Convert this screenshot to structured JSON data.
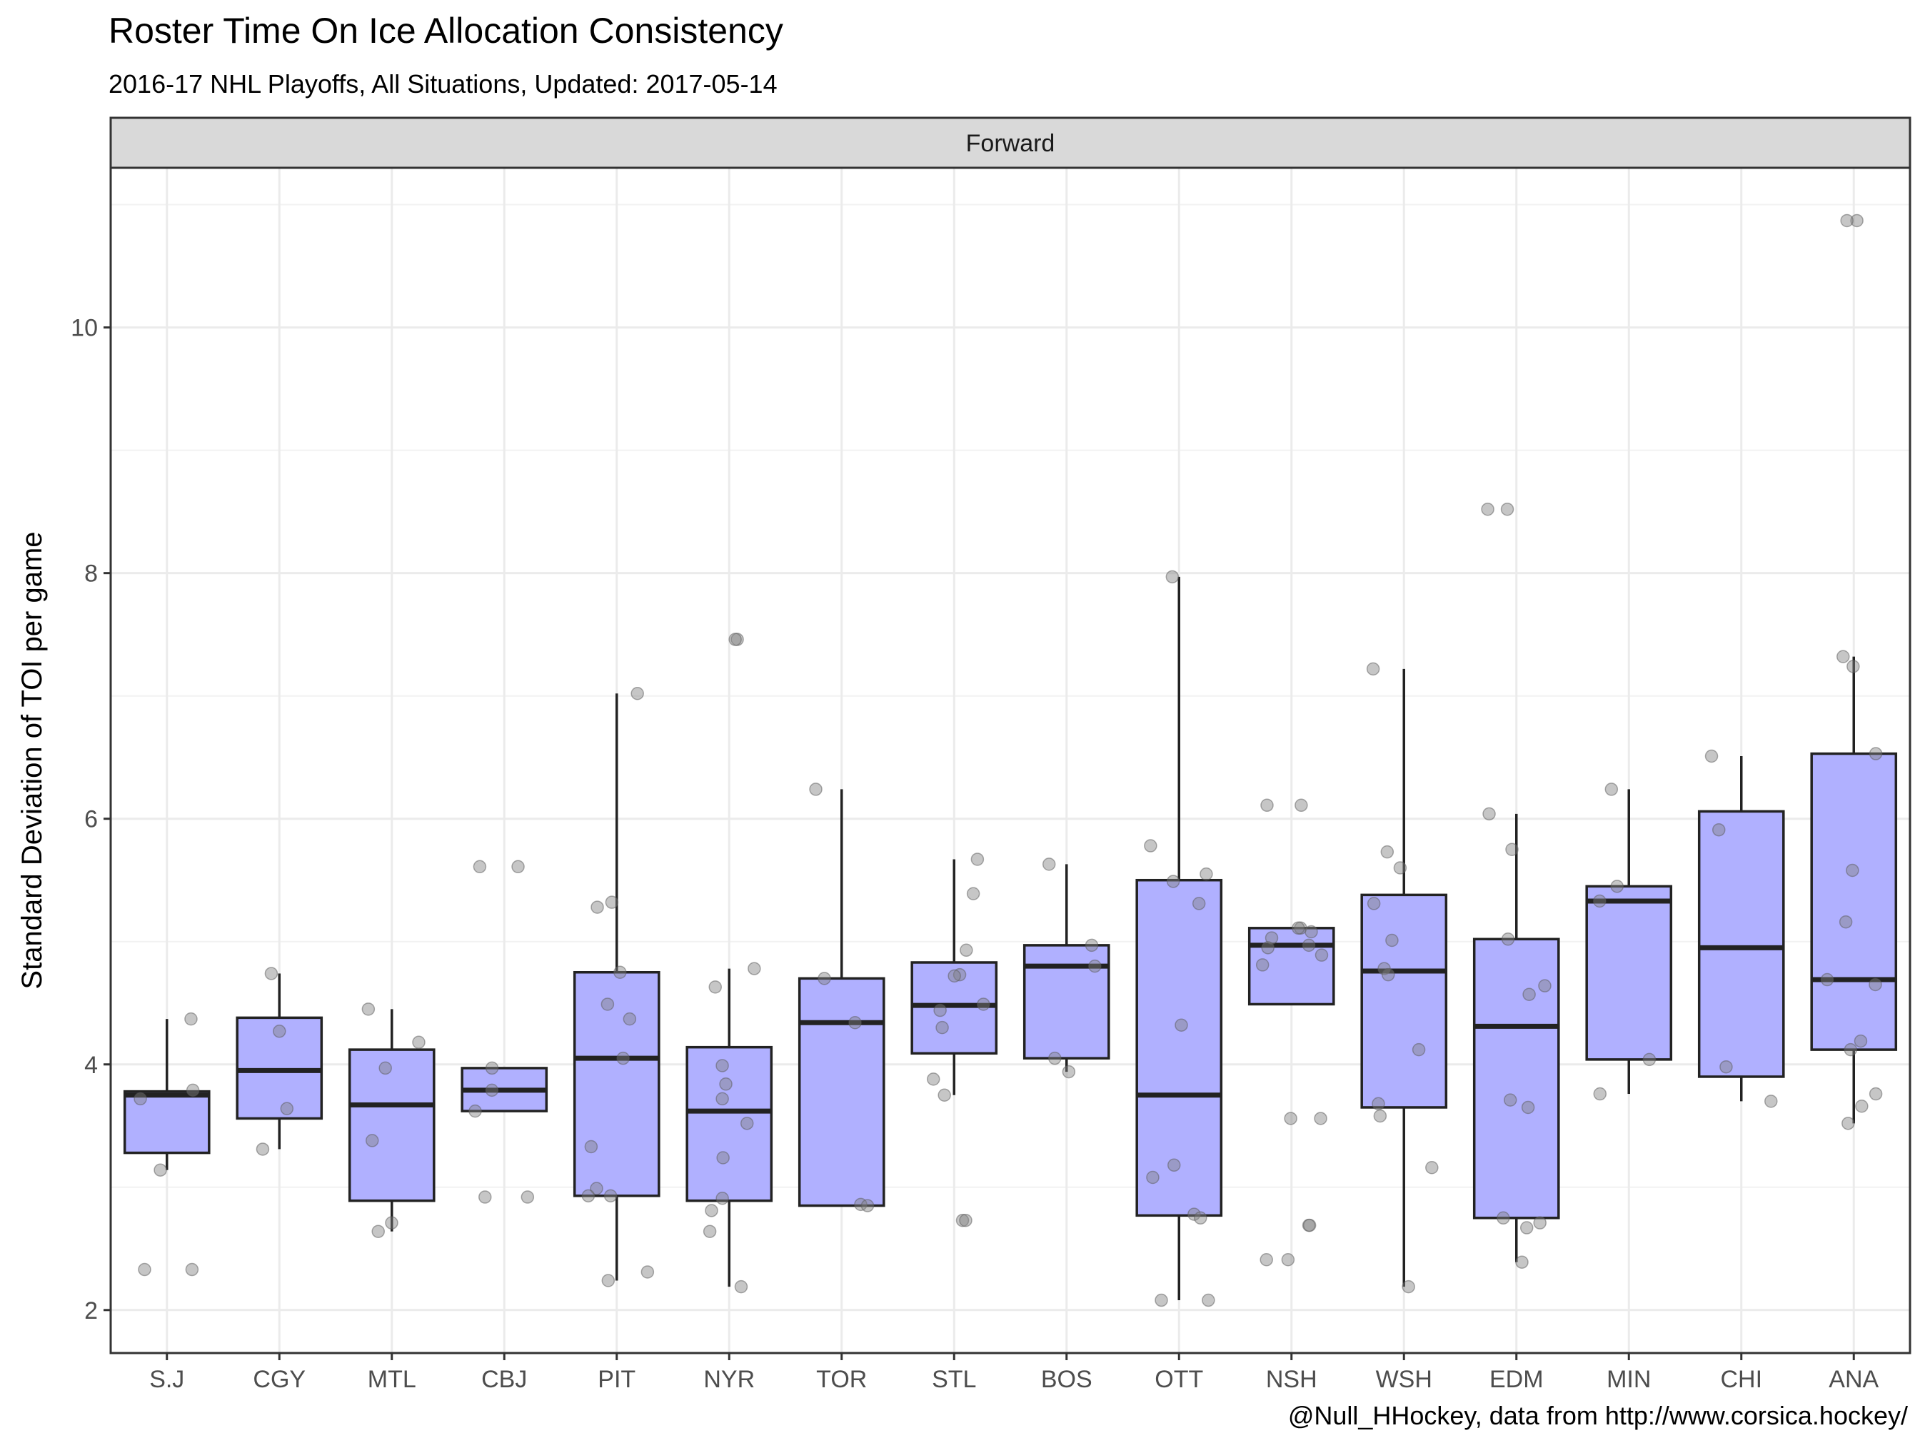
{
  "chart_data": {
    "type": "box",
    "title": "Roster Time On Ice Allocation Consistency",
    "subtitle": "2016-17 NHL Playoffs, All Situations, Updated: 2017-05-14",
    "caption": "@Null_HHockey, data from http://www.corsica.hockey/",
    "facet": "Forward",
    "xlabel": "",
    "ylabel": "Standard Deviation of TOI per game",
    "ylim": [
      1.65,
      11.3
    ],
    "yticks": [
      2,
      4,
      6,
      8,
      10
    ],
    "grid": true,
    "colors": {
      "box_fill": "#b0b0ff",
      "box_line": "#222222",
      "point": "#808080",
      "strip": "#d9d9d9"
    },
    "categories": [
      "S.J",
      "CGY",
      "MTL",
      "CBJ",
      "PIT",
      "NYR",
      "TOR",
      "STL",
      "BOS",
      "OTT",
      "NSH",
      "WSH",
      "EDM",
      "MIN",
      "CHI",
      "ANA"
    ],
    "boxes": [
      {
        "team": "S.J",
        "whisker_low": 3.14,
        "q1": 3.28,
        "median": 3.75,
        "q3": 3.78,
        "whisker_high": 4.37
      },
      {
        "team": "CGY",
        "whisker_low": 3.31,
        "q1": 3.56,
        "median": 3.95,
        "q3": 4.38,
        "whisker_high": 4.74
      },
      {
        "team": "MTL",
        "whisker_low": 2.64,
        "q1": 2.89,
        "median": 3.67,
        "q3": 4.12,
        "whisker_high": 4.45
      },
      {
        "team": "CBJ",
        "whisker_low": 3.62,
        "q1": 3.62,
        "median": 3.79,
        "q3": 3.97,
        "whisker_high": 3.97
      },
      {
        "team": "PIT",
        "whisker_low": 2.24,
        "q1": 2.93,
        "median": 4.05,
        "q3": 4.75,
        "whisker_high": 7.02
      },
      {
        "team": "NYR",
        "whisker_low": 2.19,
        "q1": 2.89,
        "median": 3.62,
        "q3": 4.14,
        "whisker_high": 4.78
      },
      {
        "team": "TOR",
        "whisker_low": 2.85,
        "q1": 2.85,
        "median": 4.34,
        "q3": 4.7,
        "whisker_high": 6.24
      },
      {
        "team": "STL",
        "whisker_low": 3.75,
        "q1": 4.09,
        "median": 4.48,
        "q3": 4.83,
        "whisker_high": 5.67
      },
      {
        "team": "BOS",
        "whisker_low": 3.94,
        "q1": 4.05,
        "median": 4.8,
        "q3": 4.97,
        "whisker_high": 5.63
      },
      {
        "team": "OTT",
        "whisker_low": 2.08,
        "q1": 2.77,
        "median": 3.75,
        "q3": 5.5,
        "whisker_high": 7.97
      },
      {
        "team": "NSH",
        "whisker_low": 4.49,
        "q1": 4.49,
        "median": 4.97,
        "q3": 5.11,
        "whisker_high": 5.11
      },
      {
        "team": "WSH",
        "whisker_low": 2.19,
        "q1": 3.65,
        "median": 4.76,
        "q3": 5.38,
        "whisker_high": 7.22
      },
      {
        "team": "EDM",
        "whisker_low": 2.39,
        "q1": 2.75,
        "median": 4.31,
        "q3": 5.02,
        "whisker_high": 6.04
      },
      {
        "team": "MIN",
        "whisker_low": 3.76,
        "q1": 4.04,
        "median": 5.33,
        "q3": 5.45,
        "whisker_high": 6.24
      },
      {
        "team": "CHI",
        "whisker_low": 3.7,
        "q1": 3.9,
        "median": 4.95,
        "q3": 6.06,
        "whisker_high": 6.51
      },
      {
        "team": "ANA",
        "whisker_low": 3.52,
        "q1": 4.12,
        "median": 4.69,
        "q3": 6.53,
        "whisker_high": 7.32
      }
    ],
    "points": [
      {
        "team": "S.J",
        "values": [
          4.37,
          3.79,
          3.72,
          3.14,
          2.33,
          2.33
        ]
      },
      {
        "team": "CGY",
        "values": [
          4.74,
          4.27,
          3.64,
          3.31
        ]
      },
      {
        "team": "MTL",
        "values": [
          4.45,
          4.18,
          3.97,
          3.38,
          2.71,
          2.64
        ]
      },
      {
        "team": "CBJ",
        "values": [
          5.61,
          5.61,
          3.97,
          3.79,
          3.62,
          2.92,
          2.92
        ]
      },
      {
        "team": "PIT",
        "values": [
          7.02,
          5.32,
          5.28,
          4.75,
          4.49,
          4.37,
          4.05,
          3.33,
          2.99,
          2.93,
          2.93,
          2.31,
          2.24
        ]
      },
      {
        "team": "NYR",
        "values": [
          7.46,
          7.46,
          4.78,
          4.63,
          3.99,
          3.84,
          3.72,
          3.52,
          3.24,
          2.91,
          2.81,
          2.64,
          2.19
        ]
      },
      {
        "team": "TOR",
        "values": [
          6.24,
          4.7,
          4.34,
          2.86,
          2.85
        ]
      },
      {
        "team": "STL",
        "values": [
          5.67,
          5.39,
          4.93,
          4.73,
          4.72,
          4.49,
          4.44,
          4.3,
          3.88,
          3.75,
          2.73,
          2.73
        ]
      },
      {
        "team": "BOS",
        "values": [
          5.63,
          4.97,
          4.8,
          4.05,
          3.94
        ]
      },
      {
        "team": "OTT",
        "values": [
          7.97,
          5.78,
          5.55,
          5.49,
          5.31,
          4.32,
          3.18,
          3.08,
          2.78,
          2.75,
          2.08,
          2.08
        ]
      },
      {
        "team": "NSH",
        "values": [
          6.11,
          6.11,
          5.11,
          5.11,
          5.08,
          5.03,
          4.97,
          4.95,
          4.89,
          4.81,
          3.56,
          3.56,
          2.69,
          2.69,
          2.41,
          2.41
        ]
      },
      {
        "team": "WSH",
        "values": [
          7.22,
          5.73,
          5.6,
          5.31,
          5.01,
          4.78,
          4.73,
          4.12,
          3.68,
          3.58,
          3.16,
          2.19
        ]
      },
      {
        "team": "EDM",
        "values": [
          8.52,
          8.52,
          6.04,
          5.75,
          5.02,
          4.64,
          4.57,
          3.71,
          3.65,
          2.75,
          2.71,
          2.67,
          2.39
        ]
      },
      {
        "team": "MIN",
        "values": [
          6.24,
          5.45,
          5.33,
          4.04,
          3.76
        ]
      },
      {
        "team": "CHI",
        "values": [
          6.51,
          5.91,
          3.98,
          3.7
        ]
      },
      {
        "team": "ANA",
        "values": [
          10.87,
          10.87,
          7.32,
          7.24,
          6.53,
          5.58,
          5.16,
          4.69,
          4.65,
          4.19,
          4.12,
          3.76,
          3.66,
          3.52
        ]
      }
    ]
  }
}
